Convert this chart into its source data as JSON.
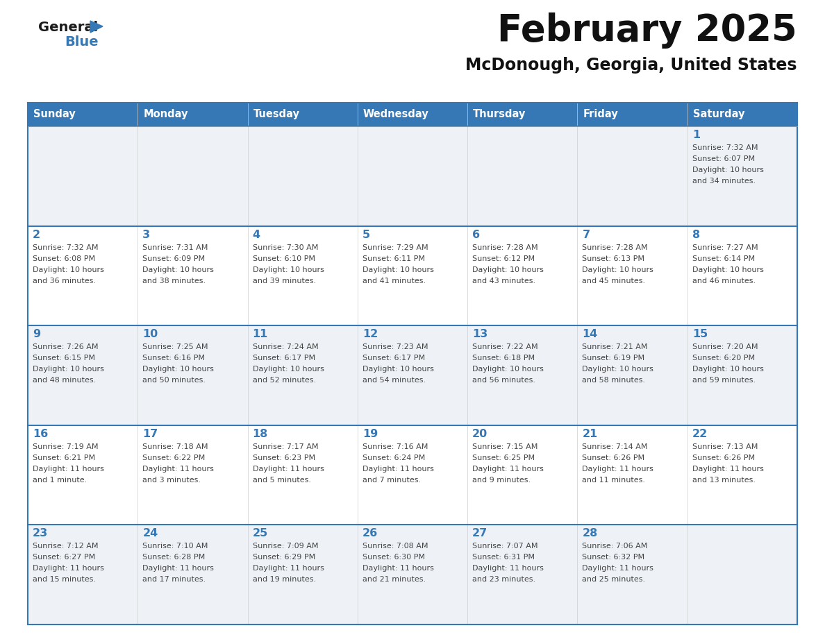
{
  "title": "February 2025",
  "subtitle": "McDonough, Georgia, United States",
  "header_color": "#3578b5",
  "header_text_color": "#ffffff",
  "cell_bg_even": "#eef2f7",
  "cell_bg_odd": "#ffffff",
  "day_number_color": "#3578b5",
  "text_color": "#444444",
  "line_color": "#3578b5",
  "days_of_week": [
    "Sunday",
    "Monday",
    "Tuesday",
    "Wednesday",
    "Thursday",
    "Friday",
    "Saturday"
  ],
  "weeks": [
    [
      {
        "day": null,
        "info": null
      },
      {
        "day": null,
        "info": null
      },
      {
        "day": null,
        "info": null
      },
      {
        "day": null,
        "info": null
      },
      {
        "day": null,
        "info": null
      },
      {
        "day": null,
        "info": null
      },
      {
        "day": "1",
        "info": "Sunrise: 7:32 AM\nSunset: 6:07 PM\nDaylight: 10 hours\nand 34 minutes."
      }
    ],
    [
      {
        "day": "2",
        "info": "Sunrise: 7:32 AM\nSunset: 6:08 PM\nDaylight: 10 hours\nand 36 minutes."
      },
      {
        "day": "3",
        "info": "Sunrise: 7:31 AM\nSunset: 6:09 PM\nDaylight: 10 hours\nand 38 minutes."
      },
      {
        "day": "4",
        "info": "Sunrise: 7:30 AM\nSunset: 6:10 PM\nDaylight: 10 hours\nand 39 minutes."
      },
      {
        "day": "5",
        "info": "Sunrise: 7:29 AM\nSunset: 6:11 PM\nDaylight: 10 hours\nand 41 minutes."
      },
      {
        "day": "6",
        "info": "Sunrise: 7:28 AM\nSunset: 6:12 PM\nDaylight: 10 hours\nand 43 minutes."
      },
      {
        "day": "7",
        "info": "Sunrise: 7:28 AM\nSunset: 6:13 PM\nDaylight: 10 hours\nand 45 minutes."
      },
      {
        "day": "8",
        "info": "Sunrise: 7:27 AM\nSunset: 6:14 PM\nDaylight: 10 hours\nand 46 minutes."
      }
    ],
    [
      {
        "day": "9",
        "info": "Sunrise: 7:26 AM\nSunset: 6:15 PM\nDaylight: 10 hours\nand 48 minutes."
      },
      {
        "day": "10",
        "info": "Sunrise: 7:25 AM\nSunset: 6:16 PM\nDaylight: 10 hours\nand 50 minutes."
      },
      {
        "day": "11",
        "info": "Sunrise: 7:24 AM\nSunset: 6:17 PM\nDaylight: 10 hours\nand 52 minutes."
      },
      {
        "day": "12",
        "info": "Sunrise: 7:23 AM\nSunset: 6:17 PM\nDaylight: 10 hours\nand 54 minutes."
      },
      {
        "day": "13",
        "info": "Sunrise: 7:22 AM\nSunset: 6:18 PM\nDaylight: 10 hours\nand 56 minutes."
      },
      {
        "day": "14",
        "info": "Sunrise: 7:21 AM\nSunset: 6:19 PM\nDaylight: 10 hours\nand 58 minutes."
      },
      {
        "day": "15",
        "info": "Sunrise: 7:20 AM\nSunset: 6:20 PM\nDaylight: 10 hours\nand 59 minutes."
      }
    ],
    [
      {
        "day": "16",
        "info": "Sunrise: 7:19 AM\nSunset: 6:21 PM\nDaylight: 11 hours\nand 1 minute."
      },
      {
        "day": "17",
        "info": "Sunrise: 7:18 AM\nSunset: 6:22 PM\nDaylight: 11 hours\nand 3 minutes."
      },
      {
        "day": "18",
        "info": "Sunrise: 7:17 AM\nSunset: 6:23 PM\nDaylight: 11 hours\nand 5 minutes."
      },
      {
        "day": "19",
        "info": "Sunrise: 7:16 AM\nSunset: 6:24 PM\nDaylight: 11 hours\nand 7 minutes."
      },
      {
        "day": "20",
        "info": "Sunrise: 7:15 AM\nSunset: 6:25 PM\nDaylight: 11 hours\nand 9 minutes."
      },
      {
        "day": "21",
        "info": "Sunrise: 7:14 AM\nSunset: 6:26 PM\nDaylight: 11 hours\nand 11 minutes."
      },
      {
        "day": "22",
        "info": "Sunrise: 7:13 AM\nSunset: 6:26 PM\nDaylight: 11 hours\nand 13 minutes."
      }
    ],
    [
      {
        "day": "23",
        "info": "Sunrise: 7:12 AM\nSunset: 6:27 PM\nDaylight: 11 hours\nand 15 minutes."
      },
      {
        "day": "24",
        "info": "Sunrise: 7:10 AM\nSunset: 6:28 PM\nDaylight: 11 hours\nand 17 minutes."
      },
      {
        "day": "25",
        "info": "Sunrise: 7:09 AM\nSunset: 6:29 PM\nDaylight: 11 hours\nand 19 minutes."
      },
      {
        "day": "26",
        "info": "Sunrise: 7:08 AM\nSunset: 6:30 PM\nDaylight: 11 hours\nand 21 minutes."
      },
      {
        "day": "27",
        "info": "Sunrise: 7:07 AM\nSunset: 6:31 PM\nDaylight: 11 hours\nand 23 minutes."
      },
      {
        "day": "28",
        "info": "Sunrise: 7:06 AM\nSunset: 6:32 PM\nDaylight: 11 hours\nand 25 minutes."
      },
      {
        "day": null,
        "info": null
      }
    ]
  ],
  "logo_general_color": "#1a1a1a",
  "logo_blue_color": "#3578b5",
  "logo_triangle_color": "#3578b5"
}
